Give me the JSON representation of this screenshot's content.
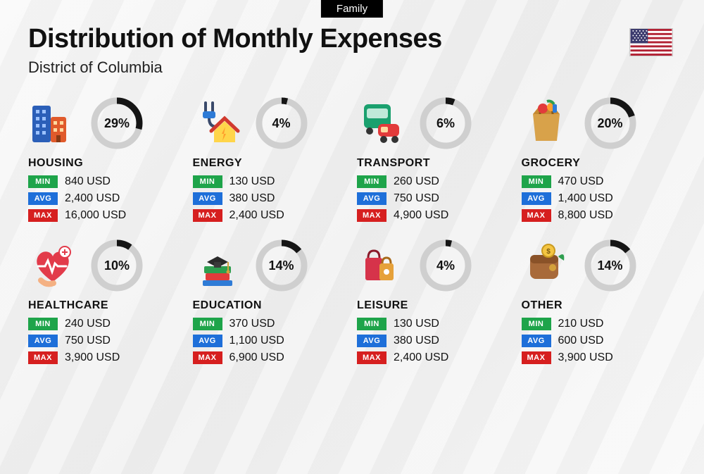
{
  "tag": "Family",
  "title": "Distribution of Monthly Expenses",
  "subtitle": "District of Columbia",
  "flag": {
    "stripe_red": "#b22234",
    "stripe_white": "#ffffff",
    "canton": "#3c3b6e"
  },
  "donut": {
    "track_color": "#cfcfcf",
    "fill_color": "#151515",
    "stroke_width": 9,
    "radius": 32,
    "pct_fontsize": 18
  },
  "badges": {
    "min": {
      "label": "MIN",
      "bg": "#1ea44a"
    },
    "avg": {
      "label": "AVG",
      "bg": "#1e6fd9"
    },
    "max": {
      "label": "MAX",
      "bg": "#d61f1f"
    }
  },
  "currency": "USD",
  "categories": [
    {
      "name": "HOUSING",
      "pct": 29,
      "min": "840",
      "avg": "2,400",
      "max": "16,000",
      "icon": "buildings"
    },
    {
      "name": "ENERGY",
      "pct": 4,
      "min": "130",
      "avg": "380",
      "max": "2,400",
      "icon": "energy"
    },
    {
      "name": "TRANSPORT",
      "pct": 6,
      "min": "260",
      "avg": "750",
      "max": "4,900",
      "icon": "transport"
    },
    {
      "name": "GROCERY",
      "pct": 20,
      "min": "470",
      "avg": "1,400",
      "max": "8,800",
      "icon": "grocery"
    },
    {
      "name": "HEALTHCARE",
      "pct": 10,
      "min": "240",
      "avg": "750",
      "max": "3,900",
      "icon": "healthcare"
    },
    {
      "name": "EDUCATION",
      "pct": 14,
      "min": "370",
      "avg": "1,100",
      "max": "6,900",
      "icon": "education"
    },
    {
      "name": "LEISURE",
      "pct": 4,
      "min": "130",
      "avg": "380",
      "max": "2,400",
      "icon": "leisure"
    },
    {
      "name": "OTHER",
      "pct": 14,
      "min": "210",
      "avg": "600",
      "max": "3,900",
      "icon": "other"
    }
  ]
}
